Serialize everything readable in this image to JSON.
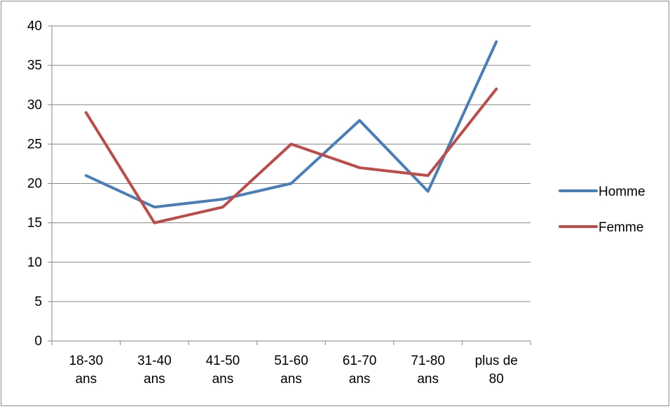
{
  "chart_data": {
    "type": "line",
    "categories": [
      [
        "18-30",
        "ans"
      ],
      [
        "31-40",
        "ans"
      ],
      [
        "41-50",
        "ans"
      ],
      [
        "51-60",
        "ans"
      ],
      [
        "61-70",
        "ans"
      ],
      [
        "71-80",
        "ans"
      ],
      [
        "plus de",
        "80"
      ]
    ],
    "series": [
      {
        "name": "Homme",
        "color": "#4a7ebb",
        "values": [
          21,
          17,
          18,
          20,
          28,
          19,
          38
        ]
      },
      {
        "name": "Femme",
        "color": "#be4b48",
        "values": [
          29,
          15,
          17,
          25,
          22,
          21,
          32
        ]
      }
    ],
    "ylim": [
      0,
      40
    ],
    "yticks": [
      0,
      5,
      10,
      15,
      20,
      25,
      30,
      35,
      40
    ],
    "grid": true,
    "legend_position": "right"
  }
}
